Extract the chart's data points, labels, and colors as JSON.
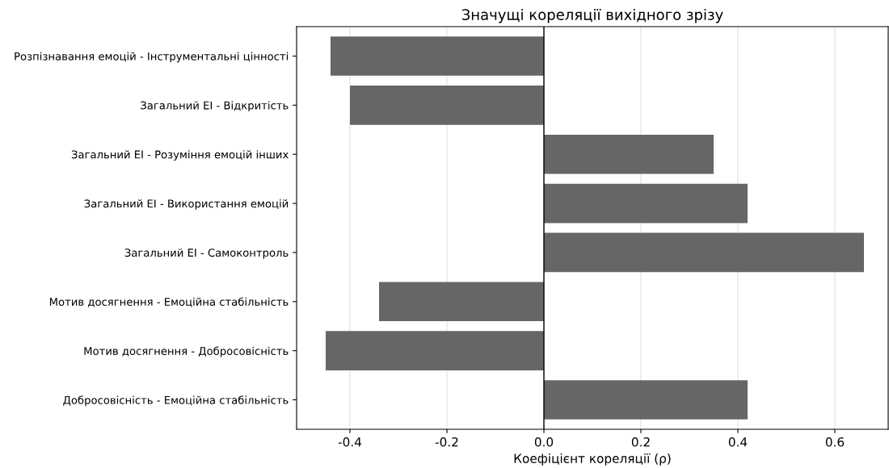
{
  "chart_data": {
    "type": "bar",
    "orientation": "horizontal",
    "title": "Значущі кореляції вихідного зрізу",
    "xlabel": "Коефіцієнт кореляції (ρ)",
    "categories": [
      "Розпізнавання емоцій - Інструментальні цінності",
      "Загальний ЕІ - Відкритість",
      "Загальний ЕІ - Розуміння емоцій інших",
      "Загальний ЕІ - Використання емоцій",
      "Загальний ЕІ - Самоконтроль",
      "Мотив досягнення - Емоційна стабільність",
      "Мотив досягнення - Добросовісність",
      "Добросовісність - Емоційна стабільність"
    ],
    "values": [
      -0.44,
      -0.4,
      0.35,
      0.42,
      0.66,
      -0.34,
      -0.45,
      0.42
    ],
    "color": "#666666",
    "xlim": [
      -0.51,
      0.71
    ],
    "xticks": [
      {
        "value": -0.4,
        "label": "-0.4"
      },
      {
        "value": -0.2,
        "label": "-0.2"
      },
      {
        "value": 0,
        "label": "0.0"
      },
      0.2,
      0.4,
      0.6
    ],
    "ref_lines": [
      {
        "axis": "x",
        "value": 0,
        "color": "#000000"
      }
    ],
    "grid": "x"
  }
}
